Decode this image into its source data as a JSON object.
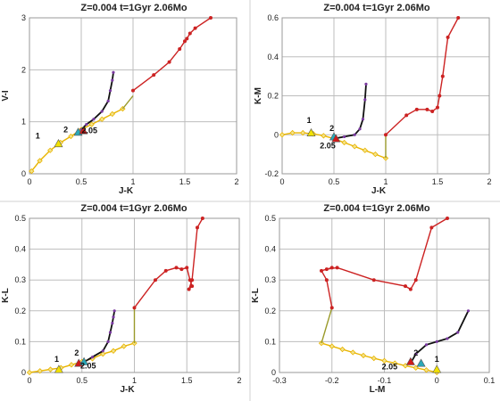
{
  "colors": {
    "red_track": "#cc2222",
    "black_track": "#111111",
    "olive_track": "#9a9a2a",
    "yellow_track": "#e8b400",
    "purple_marker": "#7a3aa0",
    "triangle_yellow": "#f2e200",
    "triangle_red": "#d01a1a",
    "triangle_cyan": "#2aa8b8",
    "grid": "#bdbdbd"
  },
  "chart_data": [
    {
      "type": "line",
      "title": "Z=0.004  t=1Gyr  2.06Mo",
      "xlabel": "J-K",
      "ylabel": "V-I",
      "xlim": [
        0,
        2
      ],
      "ylim": [
        0,
        3
      ],
      "xticks": [
        0,
        0.5,
        1,
        1.5,
        2
      ],
      "xtick_labels": [
        "0",
        "0.5",
        "1",
        "1.5",
        "2"
      ],
      "yticks": [
        0,
        1,
        2,
        3
      ],
      "ytick_labels": [
        "0",
        "1",
        "2",
        "3"
      ],
      "grid": true,
      "series": [
        {
          "color": "yellow_track",
          "marker": "diamond",
          "x": [
            0.02,
            0.1,
            0.2,
            0.3,
            0.4,
            0.5,
            0.6,
            0.7,
            0.8,
            0.9
          ],
          "y": [
            0.05,
            0.25,
            0.45,
            0.6,
            0.72,
            0.85,
            0.95,
            1.05,
            1.15,
            1.25
          ]
        },
        {
          "color": "black_track",
          "marker": "purple",
          "x": [
            0.5,
            0.55,
            0.62,
            0.7,
            0.76,
            0.78,
            0.8,
            0.81
          ],
          "y": [
            0.85,
            0.95,
            1.05,
            1.2,
            1.4,
            1.6,
            1.8,
            1.95
          ]
        },
        {
          "color": "olive_track",
          "marker": "none",
          "x": [
            0.9,
            1.0
          ],
          "y": [
            1.25,
            1.5
          ]
        },
        {
          "color": "red_track",
          "marker": "dot",
          "x": [
            1.0,
            1.2,
            1.35,
            1.45,
            1.5,
            1.52,
            1.55,
            1.6,
            1.75
          ],
          "y": [
            1.6,
            1.9,
            2.15,
            2.4,
            2.55,
            2.6,
            2.7,
            2.8,
            3.0
          ]
        }
      ],
      "markers": [
        {
          "label": "1",
          "x": 0.28,
          "y": 0.58,
          "color": "triangle_yellow",
          "label_dx": -0.2,
          "label_dy": 0.1
        },
        {
          "label": "2",
          "x": 0.47,
          "y": 0.8,
          "color": "triangle_cyan",
          "label_dx": -0.12,
          "label_dy": 0.0
        },
        {
          "label": "2.05",
          "x": 0.52,
          "y": 0.83,
          "color": "triangle_red",
          "label_dx": 0.06,
          "label_dy": -0.05
        }
      ]
    },
    {
      "type": "line",
      "title": "Z=0.004  t=1Gyr  2.06Mo",
      "xlabel": "J-K",
      "ylabel": "K-M",
      "xlim": [
        0,
        2
      ],
      "ylim": [
        -0.2,
        0.6
      ],
      "xticks": [
        0,
        0.5,
        1,
        1.5,
        2
      ],
      "xtick_labels": [
        "0",
        "0.5",
        "1",
        "1.5",
        "2"
      ],
      "yticks": [
        -0.2,
        0,
        0.2,
        0.4,
        0.6
      ],
      "ytick_labels": [
        "-0.2",
        "0",
        "0.2",
        "0.4",
        "0.6"
      ],
      "grid": true,
      "series": [
        {
          "color": "yellow_track",
          "marker": "diamond",
          "x": [
            0.0,
            0.1,
            0.2,
            0.3,
            0.4,
            0.5,
            0.6,
            0.7,
            0.8,
            0.9,
            1.0
          ],
          "y": [
            0.0,
            0.01,
            0.01,
            0.005,
            -0.005,
            -0.02,
            -0.04,
            -0.06,
            -0.08,
            -0.1,
            -0.12
          ]
        },
        {
          "color": "black_track",
          "marker": "purple",
          "x": [
            0.5,
            0.6,
            0.7,
            0.75,
            0.78,
            0.8,
            0.81
          ],
          "y": [
            -0.02,
            -0.01,
            0.0,
            0.03,
            0.08,
            0.18,
            0.26
          ]
        },
        {
          "color": "olive_track",
          "marker": "none",
          "x": [
            1.0,
            1.0
          ],
          "y": [
            -0.12,
            0.0
          ]
        },
        {
          "color": "red_track",
          "marker": "dot",
          "x": [
            1.0,
            1.2,
            1.3,
            1.4,
            1.45,
            1.5,
            1.52,
            1.55,
            1.6,
            1.7
          ],
          "y": [
            0.0,
            0.1,
            0.13,
            0.13,
            0.12,
            0.14,
            0.2,
            0.3,
            0.5,
            0.6
          ]
        }
      ],
      "markers": [
        {
          "label": "1",
          "x": 0.28,
          "y": 0.01,
          "color": "triangle_yellow",
          "label_dx": -0.02,
          "label_dy": 0.05
        },
        {
          "label": "2",
          "x": 0.5,
          "y": -0.01,
          "color": "triangle_cyan",
          "label_dx": -0.02,
          "label_dy": 0.03
        },
        {
          "label": "2.05",
          "x": 0.52,
          "y": -0.02,
          "color": "triangle_red",
          "label_dx": -0.08,
          "label_dy": -0.05
        }
      ]
    },
    {
      "type": "line",
      "title": "Z=0.004  t=1Gyr  2.06Mo",
      "xlabel": "J-K",
      "ylabel": "K-L",
      "xlim": [
        0,
        2
      ],
      "ylim": [
        0,
        0.5
      ],
      "xticks": [
        0,
        0.5,
        1,
        1.5,
        2
      ],
      "xtick_labels": [
        "0",
        "0.5",
        "1",
        "1.5",
        "2"
      ],
      "yticks": [
        0,
        0.1,
        0.2,
        0.3,
        0.4,
        0.5
      ],
      "ytick_labels": [
        "0",
        "0.1",
        "0.2",
        "0.3",
        "0.4",
        "0.5"
      ],
      "grid": true,
      "series": [
        {
          "color": "yellow_track",
          "marker": "diamond",
          "x": [
            0.0,
            0.1,
            0.2,
            0.3,
            0.4,
            0.5,
            0.6,
            0.7,
            0.8,
            0.9,
            1.0
          ],
          "y": [
            0.0,
            0.005,
            0.01,
            0.015,
            0.025,
            0.035,
            0.045,
            0.06,
            0.07,
            0.085,
            0.095
          ]
        },
        {
          "color": "black_track",
          "marker": "purple",
          "x": [
            0.5,
            0.6,
            0.7,
            0.75,
            0.77,
            0.79,
            0.8,
            0.81
          ],
          "y": [
            0.03,
            0.05,
            0.07,
            0.1,
            0.13,
            0.16,
            0.18,
            0.2
          ]
        },
        {
          "color": "olive_track",
          "marker": "none",
          "x": [
            1.0,
            1.0
          ],
          "y": [
            0.095,
            0.21
          ]
        },
        {
          "color": "red_track",
          "marker": "dot",
          "x": [
            1.0,
            1.2,
            1.3,
            1.4,
            1.45,
            1.5,
            1.53,
            1.55,
            1.52,
            1.55,
            1.6,
            1.65
          ],
          "y": [
            0.21,
            0.3,
            0.33,
            0.34,
            0.335,
            0.34,
            0.3,
            0.28,
            0.27,
            0.3,
            0.47,
            0.5
          ]
        }
      ],
      "markers": [
        {
          "label": "1",
          "x": 0.28,
          "y": 0.01,
          "color": "triangle_yellow",
          "label_dx": -0.02,
          "label_dy": 0.025
        },
        {
          "label": "2",
          "x": 0.47,
          "y": 0.03,
          "color": "triangle_red",
          "label_dx": -0.02,
          "label_dy": 0.025
        },
        {
          "label": "2.05",
          "x": 0.52,
          "y": 0.035,
          "color": "triangle_cyan",
          "label_dx": 0.04,
          "label_dy": -0.022
        }
      ]
    },
    {
      "type": "line",
      "title": "Z=0.004  t=1Gyr  2.06Mo",
      "xlabel": "L-M",
      "ylabel": "K-L",
      "xlim": [
        -0.3,
        0.1
      ],
      "ylim": [
        0,
        0.5
      ],
      "xticks": [
        -0.3,
        -0.2,
        -0.1,
        0,
        0.1
      ],
      "xtick_labels": [
        "-0.3",
        "-0.2",
        "-0.1",
        "0",
        "0.1"
      ],
      "yticks": [
        0,
        0.1,
        0.2,
        0.3,
        0.4,
        0.5
      ],
      "ytick_labels": [
        "0",
        "0.1",
        "0.2",
        "0.3",
        "0.4",
        "0.5"
      ],
      "grid": true,
      "series": [
        {
          "color": "yellow_track",
          "marker": "diamond",
          "x": [
            0.0,
            -0.02,
            -0.04,
            -0.06,
            -0.08,
            -0.1,
            -0.12,
            -0.14,
            -0.16,
            -0.18,
            -0.2,
            -0.22
          ],
          "y": [
            0.0,
            0.008,
            0.015,
            0.022,
            0.03,
            0.038,
            0.046,
            0.055,
            0.065,
            0.075,
            0.085,
            0.095
          ]
        },
        {
          "color": "black_track",
          "marker": "purple",
          "x": [
            -0.05,
            -0.04,
            -0.02,
            0.0,
            0.02,
            0.04,
            0.06
          ],
          "y": [
            0.03,
            0.06,
            0.09,
            0.1,
            0.11,
            0.13,
            0.2
          ]
        },
        {
          "color": "olive_track",
          "marker": "none",
          "x": [
            -0.22,
            -0.2
          ],
          "y": [
            0.095,
            0.21
          ]
        },
        {
          "color": "red_track",
          "marker": "dot",
          "x": [
            -0.2,
            -0.21,
            -0.22,
            -0.2,
            -0.21,
            -0.19,
            -0.12,
            -0.06,
            -0.05,
            -0.04,
            -0.01,
            0.02
          ],
          "y": [
            0.21,
            0.3,
            0.33,
            0.34,
            0.335,
            0.34,
            0.3,
            0.28,
            0.27,
            0.3,
            0.47,
            0.5
          ]
        }
      ],
      "markers": [
        {
          "label": "1",
          "x": 0.0,
          "y": 0.01,
          "color": "triangle_yellow",
          "label_dx": 0.0,
          "label_dy": 0.025
        },
        {
          "label": "2",
          "x": -0.03,
          "y": 0.03,
          "color": "triangle_cyan",
          "label_dx": -0.01,
          "label_dy": 0.025
        },
        {
          "label": "2.05",
          "x": -0.05,
          "y": 0.035,
          "color": "triangle_red",
          "label_dx": -0.04,
          "label_dy": -0.025
        }
      ]
    }
  ]
}
